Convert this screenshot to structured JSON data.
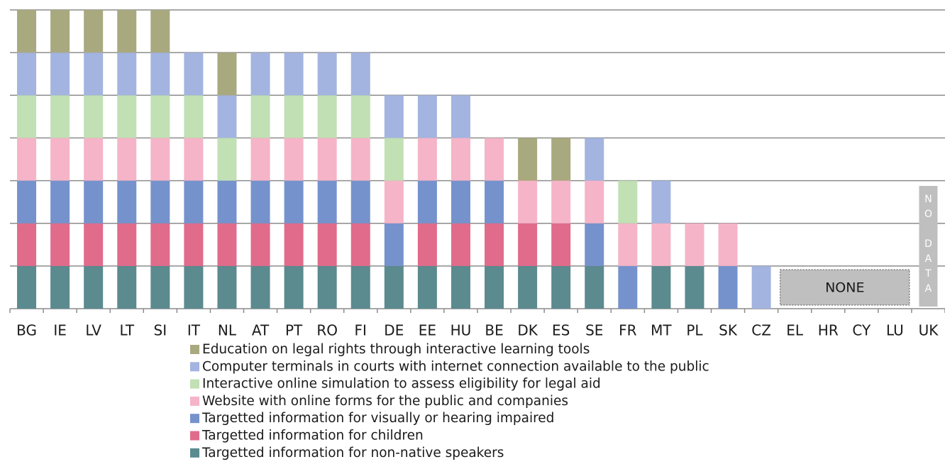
{
  "chart_data": {
    "type": "stacked-bar",
    "categories": [
      "BG",
      "IE",
      "LV",
      "LT",
      "SI",
      "IT",
      "NL",
      "AT",
      "PT",
      "RO",
      "FI",
      "DE",
      "EE",
      "HU",
      "BE",
      "DK",
      "ES",
      "SE",
      "FR",
      "MT",
      "PL",
      "SK",
      "CZ",
      "EL",
      "HR",
      "CY",
      "LU",
      "UK"
    ],
    "series": [
      {
        "name": "Targetted information for non-native speakers",
        "color": "#5b8a8f",
        "values": [
          1,
          1,
          1,
          1,
          1,
          1,
          1,
          1,
          1,
          1,
          1,
          1,
          1,
          1,
          1,
          1,
          1,
          1,
          0,
          1,
          1,
          0,
          0,
          0,
          0,
          0,
          0,
          null
        ]
      },
      {
        "name": "Targetted information for children",
        "color": "#e06b8b",
        "values": [
          1,
          1,
          1,
          1,
          1,
          1,
          1,
          1,
          1,
          1,
          1,
          0,
          1,
          1,
          1,
          1,
          1,
          0,
          0,
          0,
          0,
          0,
          0,
          0,
          0,
          0,
          0,
          null
        ]
      },
      {
        "name": "Targetted information for visually or hearing impaired",
        "color": "#7592cc",
        "values": [
          1,
          1,
          1,
          1,
          1,
          1,
          1,
          1,
          1,
          1,
          1,
          1,
          1,
          1,
          1,
          0,
          0,
          1,
          1,
          0,
          0,
          1,
          0,
          0,
          0,
          0,
          0,
          null
        ]
      },
      {
        "name": "Website with online forms for the public and companies",
        "color": "#f5b4c7",
        "values": [
          1,
          1,
          1,
          1,
          1,
          1,
          0,
          1,
          1,
          1,
          1,
          1,
          1,
          1,
          1,
          1,
          1,
          1,
          1,
          1,
          1,
          1,
          0,
          0,
          0,
          0,
          0,
          null
        ]
      },
      {
        "name": "Interactive online simulation to assess eligibility for legal aid",
        "color": "#c1e0b4",
        "values": [
          1,
          1,
          1,
          1,
          1,
          1,
          1,
          1,
          1,
          1,
          1,
          1,
          0,
          0,
          0,
          0,
          0,
          0,
          1,
          0,
          0,
          0,
          0,
          0,
          0,
          0,
          0,
          null
        ]
      },
      {
        "name": "Computer terminals in courts with internet connection available to the public",
        "color": "#a3b4e0",
        "values": [
          1,
          1,
          1,
          1,
          1,
          1,
          1,
          1,
          1,
          1,
          1,
          1,
          1,
          1,
          0,
          0,
          0,
          1,
          0,
          1,
          0,
          0,
          1,
          0,
          0,
          0,
          0,
          null
        ]
      },
      {
        "name": "Education on legal rights through interactive learning tools",
        "color": "#a9a97f",
        "values": [
          1,
          1,
          1,
          1,
          1,
          0,
          1,
          0,
          0,
          0,
          0,
          0,
          0,
          0,
          0,
          1,
          1,
          0,
          0,
          0,
          0,
          0,
          0,
          0,
          0,
          0,
          0,
          null
        ]
      }
    ],
    "ylim": [
      0,
      7
    ],
    "yticks": [
      0,
      1,
      2,
      3,
      4,
      5,
      6,
      7
    ],
    "grid": true,
    "annotations": [
      {
        "text": "NONE"
      },
      {
        "text": "NO DATA"
      }
    ]
  }
}
